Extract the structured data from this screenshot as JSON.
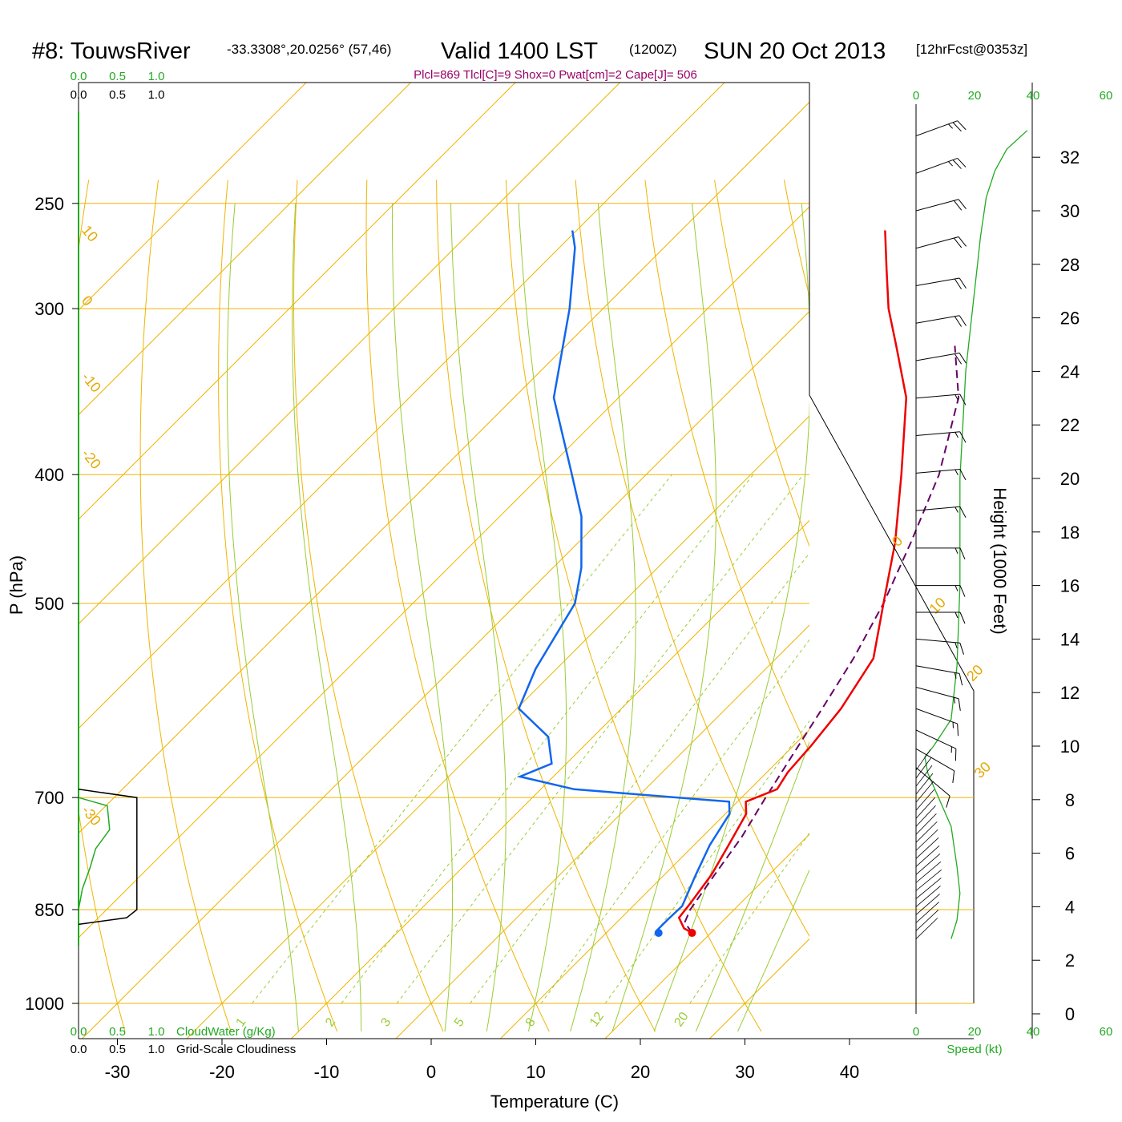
{
  "header": {
    "station": "#8: TouwsRiver",
    "coords": "-33.3308°,20.0256° (57,46)",
    "valid": "Valid 1400 LST",
    "zulu": "(1200Z)",
    "date": "SUN 20 Oct 2013",
    "forecast": "[12hrFcst@0353z]"
  },
  "params_text": "Plcl=869 Tlcl[C]=9 Shox=0 Pwat[cm]=2 Cape[J]= 506",
  "colors": {
    "temperature": "#ee0000",
    "dewpoint": "#1166ee",
    "parcel": "#660066",
    "grid": "#f0b400",
    "dry_adiabat": "#f0b400",
    "moist_adiabat": "#99cc33",
    "mixing_ratio": "#99cc33",
    "cloud_water": "#22aa22",
    "cloudiness": "#000000",
    "wind_speed": "#22aa22"
  },
  "chart_data": {
    "type": "skew-t sounding",
    "xlabel": "Temperature (C)",
    "ylabel": "P (hPa)",
    "y2label": "Height (1000 Feet)",
    "x_ticks": [
      -30,
      -20,
      -10,
      0,
      10,
      20,
      30,
      40
    ],
    "p_ticks": [
      250,
      300,
      400,
      500,
      700,
      850,
      1000
    ],
    "height_ticks_kft": [
      0,
      2,
      4,
      6,
      8,
      10,
      12,
      14,
      16,
      18,
      20,
      22,
      24,
      26,
      28,
      30,
      32
    ],
    "temperature_profile": [
      {
        "p": 885,
        "t": 18.2
      },
      {
        "p": 878,
        "t": 17.0
      },
      {
        "p": 862,
        "t": 15.5
      },
      {
        "p": 840,
        "t": 15.2
      },
      {
        "p": 800,
        "t": 14.5
      },
      {
        "p": 760,
        "t": 13.3
      },
      {
        "p": 720,
        "t": 12.0
      },
      {
        "p": 705,
        "t": 10.8
      },
      {
        "p": 690,
        "t": 12.6
      },
      {
        "p": 670,
        "t": 12.0
      },
      {
        "p": 640,
        "t": 11.7
      },
      {
        "p": 600,
        "t": 11.0
      },
      {
        "p": 550,
        "t": 9.3
      },
      {
        "p": 500,
        "t": 5.0
      },
      {
        "p": 450,
        "t": 0.3
      },
      {
        "p": 400,
        "t": -5.6
      },
      {
        "p": 350,
        "t": -12.5
      },
      {
        "p": 320,
        "t": -18.4
      },
      {
        "p": 300,
        "t": -22.7
      },
      {
        "p": 280,
        "t": -26.7
      },
      {
        "p": 262,
        "t": -30.5
      }
    ],
    "dewpoint_profile": [
      {
        "p": 885,
        "t": 15.0
      },
      {
        "p": 880,
        "t": 14.6
      },
      {
        "p": 865,
        "t": 14.6
      },
      {
        "p": 845,
        "t": 14.7
      },
      {
        "p": 800,
        "t": 13.0
      },
      {
        "p": 760,
        "t": 11.5
      },
      {
        "p": 720,
        "t": 10.4
      },
      {
        "p": 705,
        "t": 9.2
      },
      {
        "p": 690,
        "t": -6.8
      },
      {
        "p": 675,
        "t": -13.2
      },
      {
        "p": 660,
        "t": -11.4
      },
      {
        "p": 630,
        "t": -14.3
      },
      {
        "p": 600,
        "t": -19.8
      },
      {
        "p": 560,
        "t": -22.0
      },
      {
        "p": 500,
        "t": -24.5
      },
      {
        "p": 470,
        "t": -27.3
      },
      {
        "p": 430,
        "t": -32.2
      },
      {
        "p": 400,
        "t": -37.1
      },
      {
        "p": 350,
        "t": -46.2
      },
      {
        "p": 300,
        "t": -53.2
      },
      {
        "p": 270,
        "t": -58.5
      },
      {
        "p": 262,
        "t": -60.4
      }
    ],
    "parcel_profile": [
      {
        "p": 885,
        "t": 18.2
      },
      {
        "p": 869,
        "t": 16.5
      },
      {
        "p": 850,
        "t": 15.8
      },
      {
        "p": 800,
        "t": 14.8
      },
      {
        "p": 750,
        "t": 13.8
      },
      {
        "p": 700,
        "t": 12.3
      },
      {
        "p": 650,
        "t": 10.8
      },
      {
        "p": 600,
        "t": 9.2
      },
      {
        "p": 550,
        "t": 7.4
      },
      {
        "p": 500,
        "t": 5.0
      },
      {
        "p": 450,
        "t": 1.8
      },
      {
        "p": 400,
        "t": -2.0
      },
      {
        "p": 350,
        "t": -7.5
      },
      {
        "p": 320,
        "t": -12.8
      }
    ],
    "wind_barbs": [
      {
        "kft": 32.8,
        "dir": 250,
        "kt": 25
      },
      {
        "kft": 31.4,
        "dir": 250,
        "kt": 25
      },
      {
        "kft": 30.0,
        "dir": 255,
        "kt": 20
      },
      {
        "kft": 28.6,
        "dir": 255,
        "kt": 20
      },
      {
        "kft": 27.2,
        "dir": 260,
        "kt": 20
      },
      {
        "kft": 25.8,
        "dir": 260,
        "kt": 20
      },
      {
        "kft": 24.4,
        "dir": 260,
        "kt": 20
      },
      {
        "kft": 23.0,
        "dir": 265,
        "kt": 15
      },
      {
        "kft": 21.6,
        "dir": 265,
        "kt": 15
      },
      {
        "kft": 20.2,
        "dir": 265,
        "kt": 15
      },
      {
        "kft": 18.8,
        "dir": 265,
        "kt": 15
      },
      {
        "kft": 17.4,
        "dir": 270,
        "kt": 15
      },
      {
        "kft": 16.0,
        "dir": 270,
        "kt": 15
      },
      {
        "kft": 15.0,
        "dir": 270,
        "kt": 15
      },
      {
        "kft": 14.0,
        "dir": 275,
        "kt": 15
      },
      {
        "kft": 13.0,
        "dir": 280,
        "kt": 15
      },
      {
        "kft": 12.2,
        "dir": 285,
        "kt": 15
      },
      {
        "kft": 11.4,
        "dir": 290,
        "kt": 15
      },
      {
        "kft": 10.6,
        "dir": 295,
        "kt": 15
      },
      {
        "kft": 9.9,
        "dir": 300,
        "kt": 10
      },
      {
        "kft": 9.2,
        "dir": 310,
        "kt": 10
      }
    ],
    "wind_speed_profile": [
      {
        "kft": 2.8,
        "kt": 12
      },
      {
        "kft": 3.5,
        "kt": 14
      },
      {
        "kft": 4.5,
        "kt": 15
      },
      {
        "kft": 5.5,
        "kt": 14
      },
      {
        "kft": 7.0,
        "kt": 12
      },
      {
        "kft": 8.0,
        "kt": 8
      },
      {
        "kft": 9.0,
        "kt": 4
      },
      {
        "kft": 9.6,
        "kt": 3
      },
      {
        "kft": 10.0,
        "kt": 6
      },
      {
        "kft": 11.0,
        "kt": 12
      },
      {
        "kft": 13.0,
        "kt": 14
      },
      {
        "kft": 16.0,
        "kt": 15
      },
      {
        "kft": 18.0,
        "kt": 15
      },
      {
        "kft": 20.0,
        "kt": 15
      },
      {
        "kft": 22.0,
        "kt": 16
      },
      {
        "kft": 24.0,
        "kt": 17
      },
      {
        "kft": 26.0,
        "kt": 19
      },
      {
        "kft": 28.0,
        "kt": 21
      },
      {
        "kft": 29.0,
        "kt": 22
      },
      {
        "kft": 30.5,
        "kt": 24
      },
      {
        "kft": 31.5,
        "kt": 27
      },
      {
        "kft": 32.3,
        "kt": 31
      },
      {
        "kft": 33.0,
        "kt": 38
      }
    ],
    "cloud_water_profile": [
      {
        "p": 700,
        "v": 0.0
      },
      {
        "p": 710,
        "v": 0.37
      },
      {
        "p": 740,
        "v": 0.4
      },
      {
        "p": 765,
        "v": 0.22
      },
      {
        "p": 790,
        "v": 0.15
      },
      {
        "p": 820,
        "v": 0.05
      },
      {
        "p": 850,
        "v": 0.0
      }
    ],
    "cloudiness_profile": [
      {
        "p": 690,
        "v": 0.0
      },
      {
        "p": 700,
        "v": 0.75
      },
      {
        "p": 720,
        "v": 0.75
      },
      {
        "p": 850,
        "v": 0.75
      },
      {
        "p": 862,
        "v": 0.62
      },
      {
        "p": 872,
        "v": 0.0
      }
    ],
    "isotherm_labels": [
      "0",
      "10",
      "20",
      "30"
    ],
    "dry_adiabat_labels": [
      "10",
      "0",
      "-10",
      "-20",
      "-30"
    ],
    "mixing_ratio_labels": [
      "1",
      "2",
      "3",
      "5",
      "8",
      "12",
      "20"
    ],
    "scale_ticks": [
      "0.0",
      "0.5",
      "1.0"
    ],
    "cloud_water_label": "CloudWater (g/Kg)",
    "cloudiness_label": "Grid-Scale Cloudiness",
    "speed_ticks": [
      "0",
      "20",
      "40",
      "60"
    ],
    "speed_label": "Speed (kt)"
  }
}
